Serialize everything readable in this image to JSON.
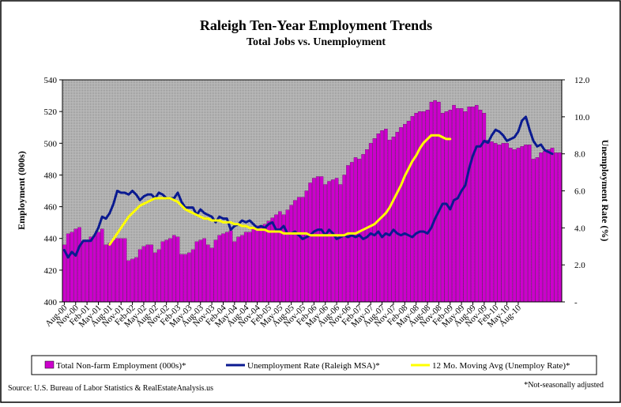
{
  "chart_data": {
    "type": "bar",
    "title": "Raleigh Ten-Year Employment Trends",
    "subtitle": "Total Jobs vs. Unemployment",
    "ylabel": "Employment (000s)",
    "y2label": "Unemployment Rate (%)",
    "ylim": [
      400,
      540
    ],
    "y2lim": [
      0,
      12
    ],
    "y_ticks": [
      "400",
      "420",
      "440",
      "460",
      "480",
      "500",
      "520",
      "540"
    ],
    "y2_ticks": [
      "-",
      "2.0",
      "4.0",
      "6.0",
      "8.0",
      "10.0",
      "12.0"
    ],
    "x_tick_labels": [
      "Aug-00",
      "Nov-00",
      "Feb-01",
      "May-01",
      "Aug-01",
      "Nov-01",
      "Feb-02",
      "May-02",
      "Aug-02",
      "Nov-02",
      "Feb-03",
      "May-03",
      "Aug-03",
      "Nov-03",
      "Feb-04",
      "May-04",
      "Aug-04",
      "Nov-04",
      "Feb-05",
      "May-05",
      "Aug-05",
      "Nov-05",
      "Feb-06",
      "May-06",
      "Aug-06",
      "Nov-06",
      "Feb-07",
      "May-07",
      "Aug-07",
      "Nov-07",
      "Feb-08",
      "May-08",
      "Aug-08",
      "Nov-08",
      "Feb-09",
      "May-09",
      "Aug-09",
      "Nov-09",
      "Feb-10",
      "May-10",
      "Aug-10"
    ],
    "x_start": "Aug-00",
    "x_end": "Sep-10",
    "grid": false,
    "legend_position": "bottom",
    "series": [
      {
        "name": "Total Non-farm Employment (000s)*",
        "type": "bar",
        "axis": "left",
        "color": "#cc00cc",
        "values": [
          436,
          443,
          444,
          446,
          447,
          438,
          439,
          441,
          442,
          444,
          446,
          436,
          437,
          439,
          440,
          440,
          440,
          426,
          427,
          428,
          433,
          435,
          436,
          436,
          431,
          433,
          438,
          439,
          440,
          442,
          441,
          430,
          430,
          431,
          433,
          438,
          439,
          440,
          436,
          434,
          439,
          442,
          443,
          444,
          445,
          438,
          441,
          442,
          444,
          444,
          446,
          448,
          448,
          449,
          451,
          453,
          455,
          457,
          455,
          458,
          461,
          464,
          466,
          466,
          470,
          475,
          478,
          479,
          479,
          474,
          476,
          477,
          478,
          474,
          480,
          486,
          488,
          491,
          490,
          493,
          496,
          500,
          503,
          506,
          508,
          509,
          502,
          504,
          507,
          510,
          512,
          514,
          517,
          519,
          520,
          520,
          521,
          526,
          527,
          526,
          519,
          520,
          521,
          524,
          522,
          522,
          520,
          523,
          523,
          524,
          521,
          519,
          502,
          501,
          500,
          499,
          500,
          500,
          497,
          496,
          497,
          498,
          499,
          499,
          490,
          491,
          494,
          495,
          496,
          497,
          494,
          494
        ]
      },
      {
        "name": "Unemployment Rate (Raleigh MSA)*",
        "type": "line",
        "axis": "right",
        "color": "#0a1a90",
        "values": [
          2.8,
          2.4,
          2.7,
          2.5,
          3.0,
          3.3,
          3.3,
          3.3,
          3.6,
          4.0,
          4.6,
          4.5,
          4.8,
          5.3,
          6.0,
          5.9,
          5.9,
          5.8,
          6.0,
          5.8,
          5.5,
          5.7,
          5.8,
          5.8,
          5.6,
          5.9,
          5.8,
          5.6,
          5.6,
          5.6,
          5.9,
          5.4,
          5.1,
          5.1,
          5.1,
          4.7,
          5.0,
          4.8,
          4.7,
          4.6,
          4.3,
          4.6,
          4.5,
          4.5,
          3.9,
          4.1,
          4.2,
          4.4,
          4.3,
          4.4,
          4.2,
          4.0,
          4.1,
          4.0,
          4.2,
          4.3,
          3.9,
          3.9,
          4.1,
          3.7,
          3.7,
          3.8,
          3.6,
          3.4,
          3.5,
          3.6,
          3.8,
          3.9,
          3.9,
          3.6,
          3.9,
          3.7,
          3.4,
          3.5,
          3.6,
          3.5,
          3.6,
          3.5,
          3.6,
          3.4,
          3.5,
          3.7,
          3.6,
          3.8,
          3.5,
          3.7,
          3.6,
          3.9,
          3.7,
          3.6,
          3.7,
          3.6,
          3.5,
          3.7,
          3.8,
          3.8,
          3.7,
          4.0,
          4.5,
          4.9,
          5.3,
          5.3,
          5.0,
          5.5,
          5.6,
          6.0,
          6.3,
          7.2,
          7.9,
          8.4,
          8.4,
          8.7,
          8.6,
          9.0,
          9.3,
          9.2,
          9.0,
          8.7,
          8.8,
          8.9,
          9.2,
          9.8,
          10.0,
          9.3,
          8.7,
          8.4,
          8.5,
          8.2,
          8.1,
          8.0
        ]
      },
      {
        "name": "12 Mo. Moving Avg (Unemploy Rate)*",
        "type": "line",
        "axis": "right",
        "color": "#ffff00",
        "start_label": "Aug-01",
        "values": [
          3.1,
          3.4,
          3.7,
          4.0,
          4.3,
          4.6,
          4.8,
          5.0,
          5.2,
          5.3,
          5.4,
          5.5,
          5.6,
          5.6,
          5.6,
          5.6,
          5.6,
          5.5,
          5.4,
          5.2,
          5.0,
          4.9,
          4.8,
          4.7,
          4.6,
          4.5,
          4.5,
          4.4,
          4.4,
          4.4,
          4.3,
          4.3,
          4.3,
          4.2,
          4.2,
          4.1,
          4.1,
          4.0,
          4.0,
          3.9,
          3.9,
          3.9,
          3.8,
          3.8,
          3.8,
          3.8,
          3.7,
          3.7,
          3.7,
          3.7,
          3.7,
          3.7,
          3.7,
          3.6,
          3.6,
          3.6,
          3.6,
          3.6,
          3.6,
          3.6,
          3.6,
          3.6,
          3.6,
          3.7,
          3.7,
          3.7,
          3.8,
          3.9,
          4.0,
          4.1,
          4.2,
          4.4,
          4.6,
          4.8,
          5.1,
          5.5,
          5.9,
          6.3,
          6.8,
          7.2,
          7.6,
          7.9,
          8.3,
          8.6,
          8.8,
          9.0,
          9.0,
          9.0,
          8.9,
          8.8,
          8.8
        ]
      }
    ]
  },
  "source_note": "Source: U.S. Bureau of Labor Statistics & RealEstateAnalysis.us",
  "footnote": "*Not-seasonally adjusted"
}
